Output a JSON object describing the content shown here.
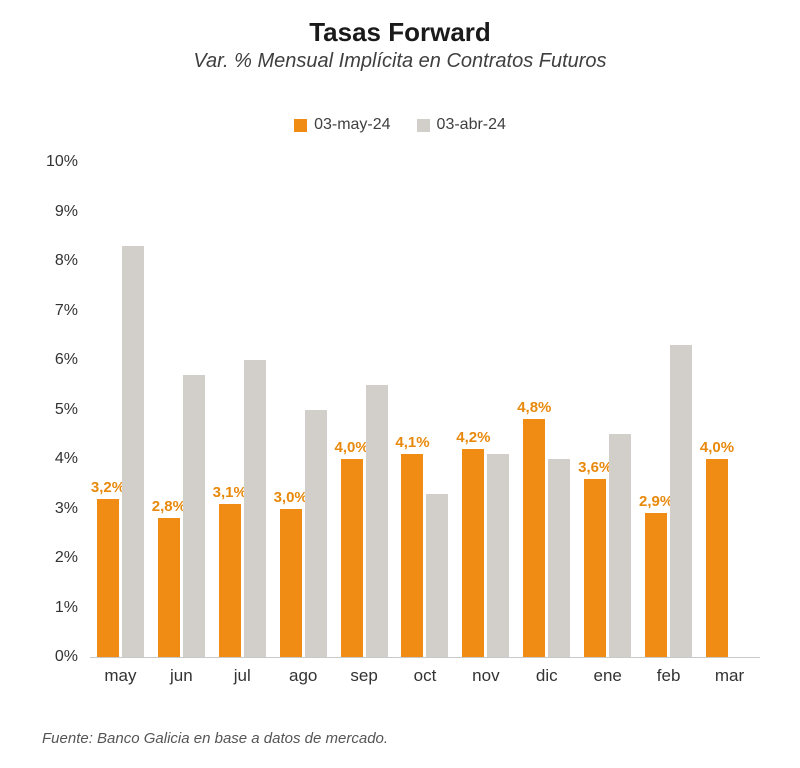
{
  "title": "Tasas Forward",
  "subtitle": "Var. % Mensual Implícita en Contratos Futuros",
  "legend": [
    {
      "label": "03-may-24",
      "color": "#F08C14"
    },
    {
      "label": "03-abr-24",
      "color": "#D2CECA"
    }
  ],
  "footer": "Fuente: Banco Galicia en base a datos de mercado.",
  "chart_data": {
    "type": "bar",
    "title": "Tasas Forward",
    "subtitle": "Var. % Mensual Implícita en Contratos Futuros",
    "categories": [
      "may",
      "jun",
      "jul",
      "ago",
      "sep",
      "oct",
      "nov",
      "dic",
      "ene",
      "feb",
      "mar"
    ],
    "series": [
      {
        "name": "03-may-24",
        "color": "#F08C14",
        "values": [
          3.2,
          2.8,
          3.1,
          3.0,
          4.0,
          4.1,
          4.2,
          4.8,
          3.6,
          2.9,
          4.0
        ],
        "labels": [
          "3,2%",
          "2,8%",
          "3,1%",
          "3,0%",
          "4,0%",
          "4,1%",
          "4,2%",
          "4,8%",
          "3,6%",
          "2,9%",
          "4,0%"
        ]
      },
      {
        "name": "03-abr-24",
        "color": "#D2CECA",
        "values": [
          8.3,
          5.7,
          6.0,
          5.0,
          5.5,
          3.3,
          4.1,
          4.0,
          4.5,
          6.3,
          null
        ],
        "labels": null
      }
    ],
    "ylim": [
      0,
      10
    ],
    "ytick_step": 1,
    "ytick_labels": [
      "0%",
      "1%",
      "2%",
      "3%",
      "4%",
      "5%",
      "6%",
      "7%",
      "8%",
      "9%",
      "10%"
    ],
    "grid": false,
    "legend_position": "top"
  }
}
